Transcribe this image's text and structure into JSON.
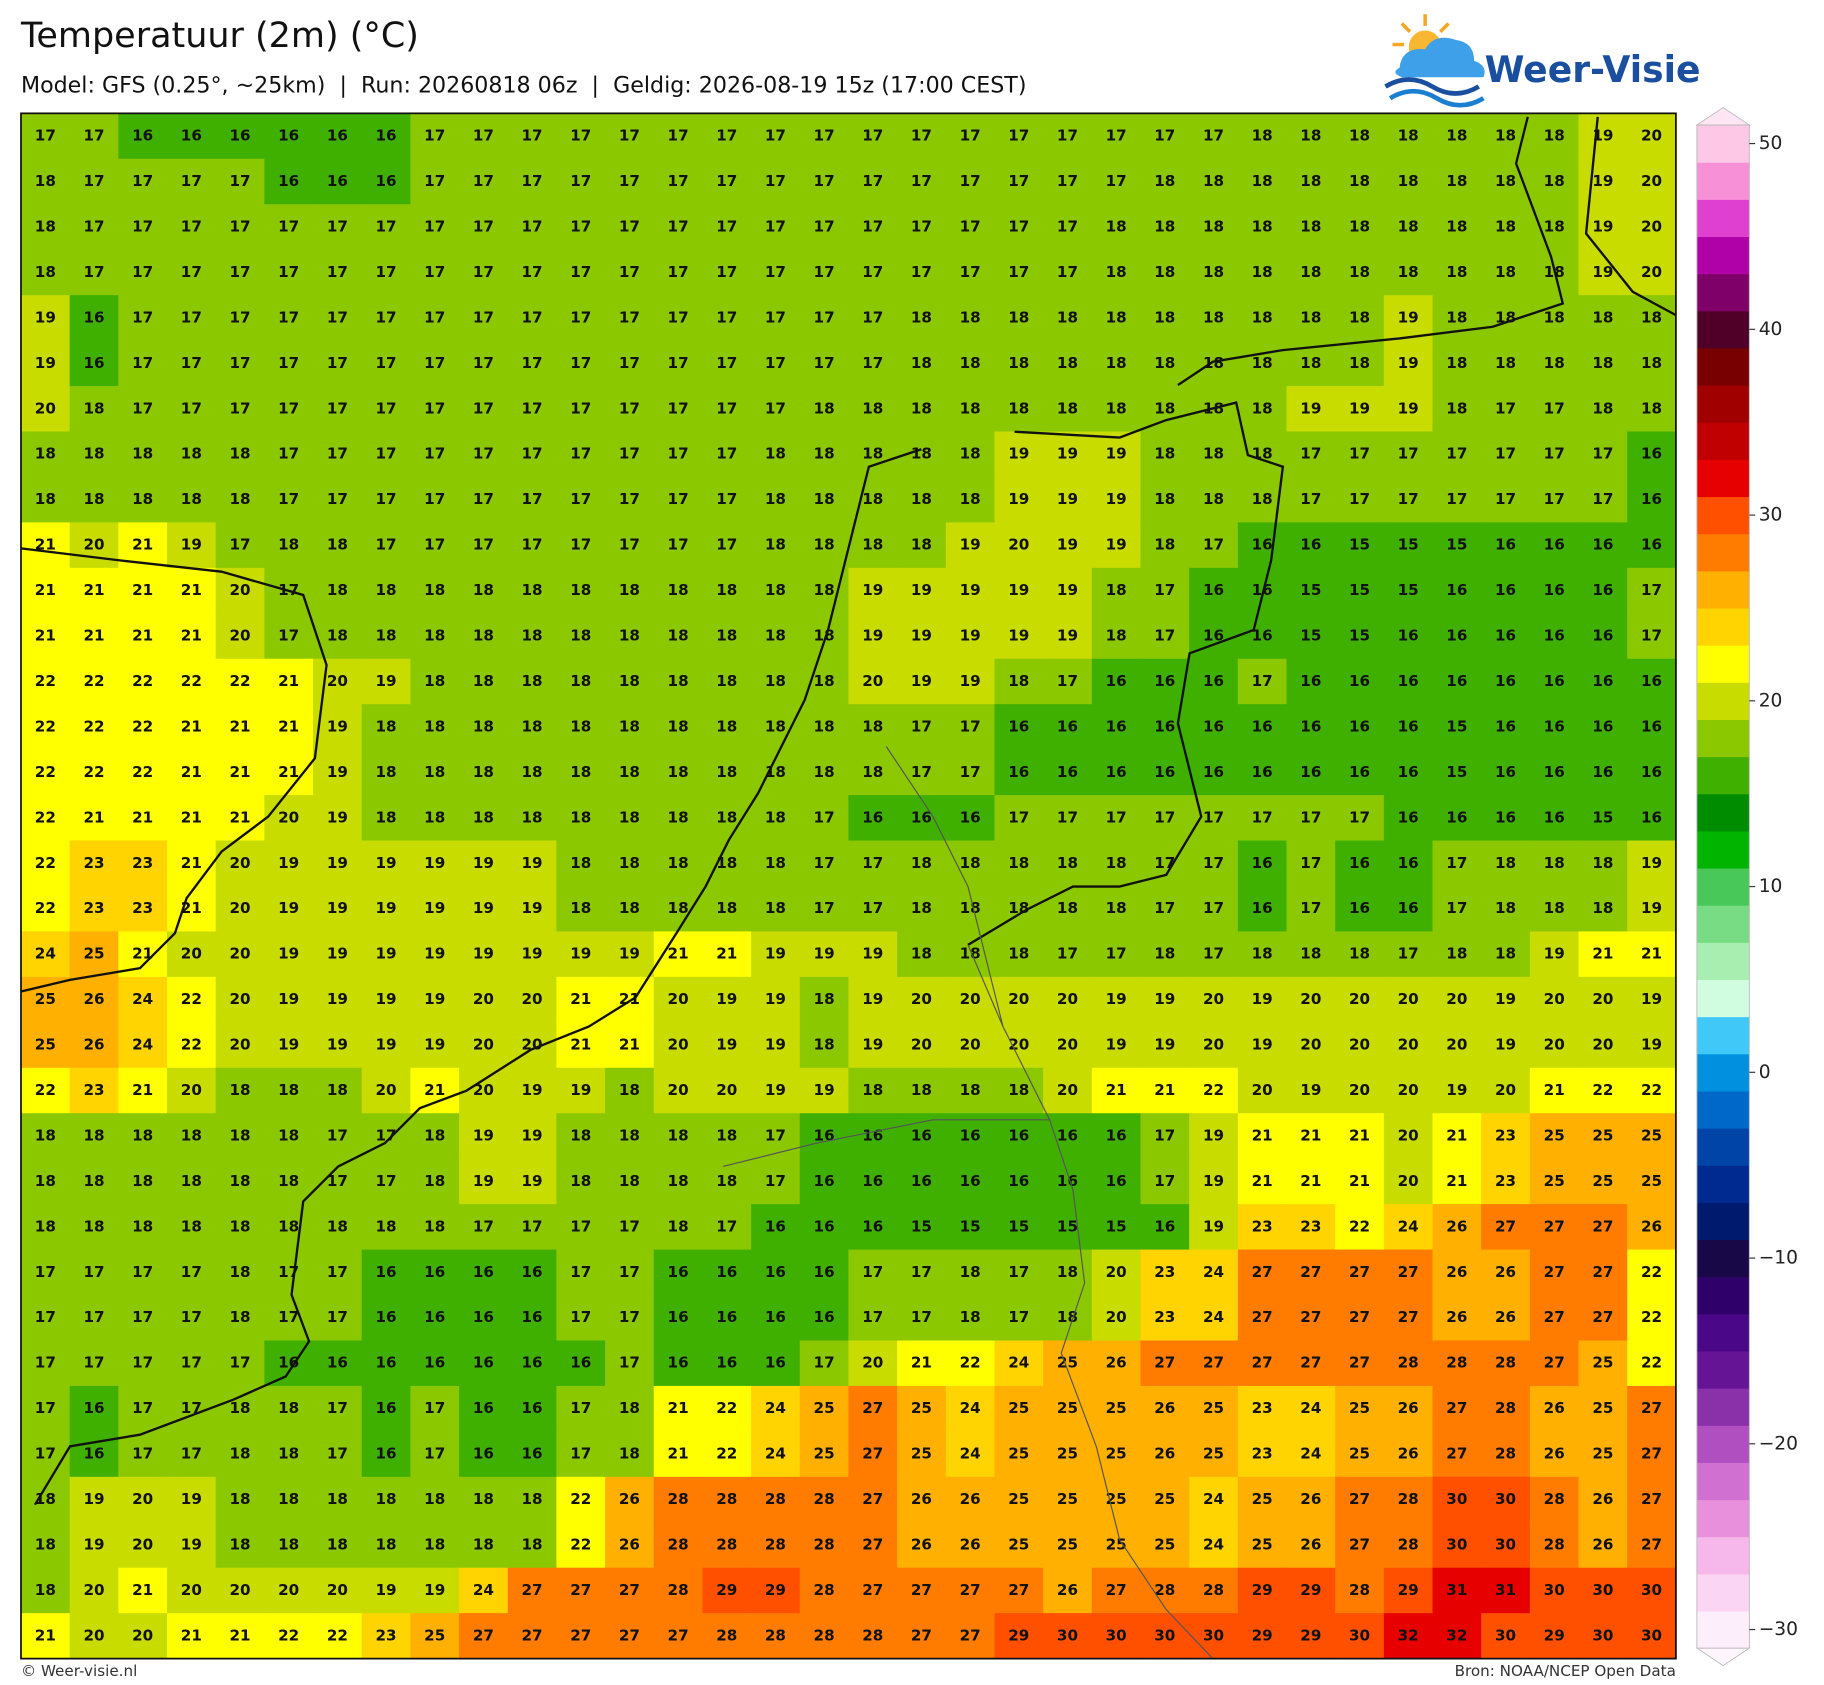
{
  "header": {
    "title": "Temperatuur (2m) (°C)",
    "subtitle": "Model: GFS (0.25°, ~25km)  |  Run: 20260818 06z  |  Geldig: 2026-08-19 15z (17:00 CEST)"
  },
  "logo": {
    "text": "Weer-Visie"
  },
  "grid": {
    "values": [
      [
        17,
        17,
        16,
        16,
        16,
        16,
        16,
        16,
        17,
        17,
        17,
        17,
        17,
        17,
        17,
        17,
        17,
        17,
        17,
        17,
        17,
        17,
        17,
        17,
        17,
        18,
        18,
        18,
        18,
        18,
        18,
        18,
        19,
        20
      ],
      [
        18,
        17,
        17,
        17,
        17,
        16,
        16,
        16,
        17,
        17,
        17,
        17,
        17,
        17,
        17,
        17,
        17,
        17,
        17,
        17,
        17,
        17,
        17,
        18,
        18,
        18,
        18,
        18,
        18,
        18,
        18,
        18,
        19,
        20
      ],
      [
        18,
        17,
        17,
        17,
        17,
        17,
        17,
        17,
        17,
        17,
        17,
        17,
        17,
        17,
        17,
        17,
        17,
        17,
        17,
        17,
        17,
        17,
        18,
        18,
        18,
        18,
        18,
        18,
        18,
        18,
        18,
        18,
        19,
        20
      ],
      [
        18,
        17,
        17,
        17,
        17,
        17,
        17,
        17,
        17,
        17,
        17,
        17,
        17,
        17,
        17,
        17,
        17,
        17,
        17,
        17,
        17,
        17,
        18,
        18,
        18,
        18,
        18,
        18,
        18,
        18,
        18,
        18,
        19,
        20
      ],
      [
        19,
        16,
        17,
        17,
        17,
        17,
        17,
        17,
        17,
        17,
        17,
        17,
        17,
        17,
        17,
        17,
        17,
        17,
        18,
        18,
        18,
        18,
        18,
        18,
        18,
        18,
        18,
        18,
        19,
        18,
        18,
        18,
        18,
        18
      ],
      [
        19,
        16,
        17,
        17,
        17,
        17,
        17,
        17,
        17,
        17,
        17,
        17,
        17,
        17,
        17,
        17,
        17,
        17,
        18,
        18,
        18,
        18,
        18,
        18,
        18,
        18,
        18,
        18,
        19,
        18,
        18,
        18,
        18,
        18
      ],
      [
        20,
        18,
        17,
        17,
        17,
        17,
        17,
        17,
        17,
        17,
        17,
        17,
        17,
        17,
        17,
        17,
        18,
        18,
        18,
        18,
        18,
        18,
        18,
        18,
        18,
        18,
        19,
        19,
        19,
        18,
        17,
        17,
        18,
        18
      ],
      [
        18,
        18,
        18,
        18,
        18,
        17,
        17,
        17,
        17,
        17,
        17,
        17,
        17,
        17,
        17,
        18,
        18,
        18,
        18,
        18,
        19,
        19,
        19,
        18,
        18,
        18,
        17,
        17,
        17,
        17,
        17,
        17,
        17,
        16
      ],
      [
        18,
        18,
        18,
        18,
        18,
        17,
        17,
        17,
        17,
        17,
        17,
        17,
        17,
        17,
        17,
        18,
        18,
        18,
        18,
        18,
        19,
        19,
        19,
        18,
        18,
        18,
        17,
        17,
        17,
        17,
        17,
        17,
        17,
        16
      ],
      [
        21,
        20,
        21,
        19,
        17,
        18,
        18,
        17,
        17,
        17,
        17,
        17,
        17,
        17,
        17,
        18,
        18,
        18,
        18,
        19,
        20,
        19,
        19,
        18,
        17,
        16,
        16,
        15,
        15,
        15,
        16,
        16,
        16,
        16
      ],
      [
        21,
        21,
        21,
        21,
        20,
        17,
        18,
        18,
        18,
        18,
        18,
        18,
        18,
        18,
        18,
        18,
        18,
        19,
        19,
        19,
        19,
        19,
        18,
        17,
        16,
        16,
        15,
        15,
        15,
        16,
        16,
        16,
        16,
        17
      ],
      [
        21,
        21,
        21,
        21,
        20,
        17,
        18,
        18,
        18,
        18,
        18,
        18,
        18,
        18,
        18,
        18,
        18,
        19,
        19,
        19,
        19,
        19,
        18,
        17,
        16,
        16,
        15,
        15,
        16,
        16,
        16,
        16,
        16,
        17
      ],
      [
        22,
        22,
        22,
        22,
        22,
        21,
        20,
        19,
        18,
        18,
        18,
        18,
        18,
        18,
        18,
        18,
        18,
        20,
        19,
        19,
        18,
        17,
        16,
        16,
        16,
        17,
        16,
        16,
        16,
        16,
        16,
        16,
        16,
        16
      ],
      [
        22,
        22,
        22,
        21,
        21,
        21,
        19,
        18,
        18,
        18,
        18,
        18,
        18,
        18,
        18,
        18,
        18,
        18,
        17,
        17,
        16,
        16,
        16,
        16,
        16,
        16,
        16,
        16,
        16,
        15,
        16,
        16,
        16,
        16
      ],
      [
        22,
        22,
        22,
        21,
        21,
        21,
        19,
        18,
        18,
        18,
        18,
        18,
        18,
        18,
        18,
        18,
        18,
        18,
        17,
        17,
        16,
        16,
        16,
        16,
        16,
        16,
        16,
        16,
        16,
        15,
        16,
        16,
        16,
        16
      ],
      [
        22,
        21,
        21,
        21,
        21,
        20,
        19,
        18,
        18,
        18,
        18,
        18,
        18,
        18,
        18,
        18,
        17,
        16,
        16,
        16,
        17,
        17,
        17,
        17,
        17,
        17,
        17,
        17,
        16,
        16,
        16,
        16,
        15,
        16
      ],
      [
        22,
        23,
        23,
        21,
        20,
        19,
        19,
        19,
        19,
        19,
        19,
        18,
        18,
        18,
        18,
        18,
        17,
        17,
        18,
        18,
        18,
        18,
        18,
        17,
        17,
        16,
        17,
        16,
        16,
        17,
        18,
        18,
        18,
        19
      ],
      [
        22,
        23,
        23,
        21,
        20,
        19,
        19,
        19,
        19,
        19,
        19,
        18,
        18,
        18,
        18,
        18,
        17,
        17,
        18,
        18,
        18,
        18,
        18,
        17,
        17,
        16,
        17,
        16,
        16,
        17,
        18,
        18,
        18,
        19
      ],
      [
        24,
        25,
        21,
        20,
        20,
        19,
        19,
        19,
        19,
        19,
        19,
        19,
        19,
        21,
        21,
        19,
        19,
        19,
        18,
        18,
        18,
        17,
        17,
        18,
        17,
        18,
        18,
        18,
        17,
        18,
        18,
        19,
        21,
        21
      ],
      [
        25,
        26,
        24,
        22,
        20,
        19,
        19,
        19,
        19,
        20,
        20,
        21,
        21,
        20,
        19,
        19,
        18,
        19,
        20,
        20,
        20,
        20,
        19,
        19,
        20,
        19,
        20,
        20,
        20,
        20,
        19,
        20,
        20,
        19
      ],
      [
        25,
        26,
        24,
        22,
        20,
        19,
        19,
        19,
        19,
        20,
        20,
        21,
        21,
        20,
        19,
        19,
        18,
        19,
        20,
        20,
        20,
        20,
        19,
        19,
        20,
        19,
        20,
        20,
        20,
        20,
        19,
        20,
        20,
        19
      ],
      [
        22,
        23,
        21,
        20,
        18,
        18,
        18,
        20,
        21,
        20,
        19,
        19,
        18,
        20,
        20,
        19,
        19,
        18,
        18,
        18,
        18,
        20,
        21,
        21,
        22,
        20,
        19,
        20,
        20,
        19,
        20,
        21,
        22,
        22
      ],
      [
        18,
        18,
        18,
        18,
        18,
        18,
        17,
        17,
        18,
        19,
        19,
        18,
        18,
        18,
        18,
        17,
        16,
        16,
        16,
        16,
        16,
        16,
        16,
        17,
        19,
        21,
        21,
        21,
        20,
        21,
        23,
        25,
        25,
        25
      ],
      [
        18,
        18,
        18,
        18,
        18,
        18,
        17,
        17,
        18,
        19,
        19,
        18,
        18,
        18,
        18,
        17,
        16,
        16,
        16,
        16,
        16,
        16,
        16,
        17,
        19,
        21,
        21,
        21,
        20,
        21,
        23,
        25,
        25,
        25
      ],
      [
        18,
        18,
        18,
        18,
        18,
        18,
        18,
        18,
        18,
        17,
        17,
        17,
        17,
        18,
        17,
        16,
        16,
        16,
        15,
        15,
        15,
        15,
        15,
        16,
        19,
        23,
        23,
        22,
        24,
        26,
        27,
        27,
        27,
        26
      ],
      [
        17,
        17,
        17,
        17,
        18,
        17,
        17,
        16,
        16,
        16,
        16,
        17,
        17,
        16,
        16,
        16,
        16,
        17,
        17,
        18,
        17,
        18,
        20,
        23,
        24,
        27,
        27,
        27,
        27,
        26,
        26,
        27,
        27,
        22
      ],
      [
        17,
        17,
        17,
        17,
        18,
        17,
        17,
        16,
        16,
        16,
        16,
        17,
        17,
        16,
        16,
        16,
        16,
        17,
        17,
        18,
        17,
        18,
        20,
        23,
        24,
        27,
        27,
        27,
        27,
        26,
        26,
        27,
        27,
        22
      ],
      [
        17,
        17,
        17,
        17,
        17,
        16,
        16,
        16,
        16,
        16,
        16,
        16,
        17,
        16,
        16,
        16,
        17,
        20,
        21,
        22,
        24,
        25,
        26,
        27,
        27,
        27,
        27,
        27,
        28,
        28,
        28,
        27,
        25,
        22
      ],
      [
        17,
        16,
        17,
        17,
        18,
        18,
        17,
        16,
        17,
        16,
        16,
        17,
        18,
        21,
        22,
        24,
        25,
        27,
        25,
        24,
        25,
        25,
        25,
        26,
        25,
        23,
        24,
        25,
        26,
        27,
        28,
        26,
        25,
        27
      ],
      [
        17,
        16,
        17,
        17,
        18,
        18,
        17,
        16,
        17,
        16,
        16,
        17,
        18,
        21,
        22,
        24,
        25,
        27,
        25,
        24,
        25,
        25,
        25,
        26,
        25,
        23,
        24,
        25,
        26,
        27,
        28,
        26,
        25,
        27
      ],
      [
        18,
        19,
        20,
        19,
        18,
        18,
        18,
        18,
        18,
        18,
        18,
        22,
        26,
        28,
        28,
        28,
        28,
        27,
        26,
        26,
        25,
        25,
        25,
        25,
        24,
        25,
        26,
        27,
        28,
        30,
        30,
        28,
        26,
        27
      ],
      [
        18,
        19,
        20,
        19,
        18,
        18,
        18,
        18,
        18,
        18,
        18,
        22,
        26,
        28,
        28,
        28,
        28,
        27,
        26,
        26,
        25,
        25,
        25,
        25,
        24,
        25,
        26,
        27,
        28,
        30,
        30,
        28,
        26,
        27
      ],
      [
        18,
        20,
        21,
        20,
        20,
        20,
        20,
        19,
        19,
        24,
        27,
        27,
        27,
        28,
        29,
        29,
        28,
        27,
        27,
        27,
        27,
        26,
        27,
        28,
        28,
        29,
        29,
        28,
        29,
        31,
        31,
        30,
        30,
        30
      ],
      [
        21,
        20,
        20,
        21,
        21,
        22,
        22,
        23,
        25,
        27,
        27,
        27,
        27,
        27,
        28,
        28,
        28,
        28,
        27,
        27,
        29,
        30,
        30,
        30,
        30,
        29,
        29,
        30,
        32,
        32,
        30,
        29,
        30,
        30
      ]
    ]
  },
  "colorbar": {
    "lim": [
      -31,
      51
    ],
    "colors": [
      "#fdeefb",
      "#fbd6f4",
      "#f6b8ea",
      "#e890dc",
      "#d070d0",
      "#b050c0",
      "#8a30a8",
      "#661496",
      "#4a0888",
      "#30006a",
      "#180848",
      "#001a6e",
      "#002a90",
      "#0044a8",
      "#0068c8",
      "#0090e0",
      "#40c8f8",
      "#d0fce0",
      "#a8eeb0",
      "#78dc84",
      "#48c858",
      "#00b400",
      "#008c00",
      "#40b000",
      "#8cc800",
      "#c8dc00",
      "#ffff00",
      "#ffd400",
      "#ffb000",
      "#ff7c00",
      "#ff5000",
      "#e60000",
      "#c00000",
      "#a00000",
      "#780000",
      "#500028",
      "#80006a",
      "#b000a8",
      "#e040d0",
      "#f890d8",
      "#fcc8e6"
    ],
    "ticks": [
      {
        "value": -30,
        "label": "−30"
      },
      {
        "value": -20,
        "label": "−20"
      },
      {
        "value": -10,
        "label": "−10"
      },
      0,
      10,
      20,
      30,
      40,
      50
    ]
  },
  "footer": {
    "left": "© Weer-visie.nl",
    "right": "Bron: NOAA/NCEP Open Data"
  }
}
